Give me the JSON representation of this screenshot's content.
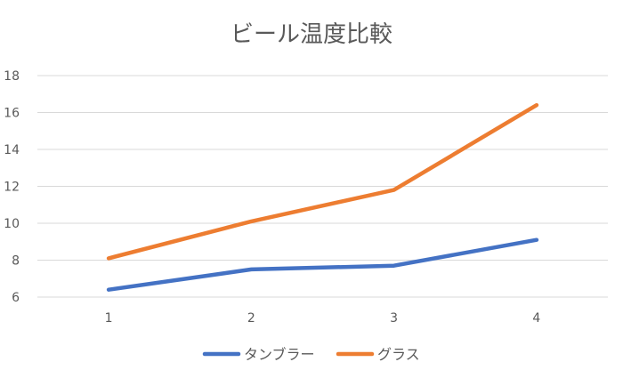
{
  "chart_data": {
    "type": "line",
    "title": "ビール温度比較",
    "xlabel": "",
    "ylabel": "",
    "x": [
      1,
      2,
      3,
      4
    ],
    "ylim": [
      6,
      18
    ],
    "yticks": [
      6,
      8,
      10,
      12,
      14,
      16,
      18
    ],
    "grid": true,
    "legend_position": "bottom",
    "series": [
      {
        "name": "タンブラー",
        "color": "#4472C4",
        "values": [
          6.4,
          7.5,
          7.7,
          9.1
        ]
      },
      {
        "name": "グラス",
        "color": "#ED7D31",
        "values": [
          8.1,
          10.1,
          11.8,
          16.4
        ]
      }
    ]
  }
}
